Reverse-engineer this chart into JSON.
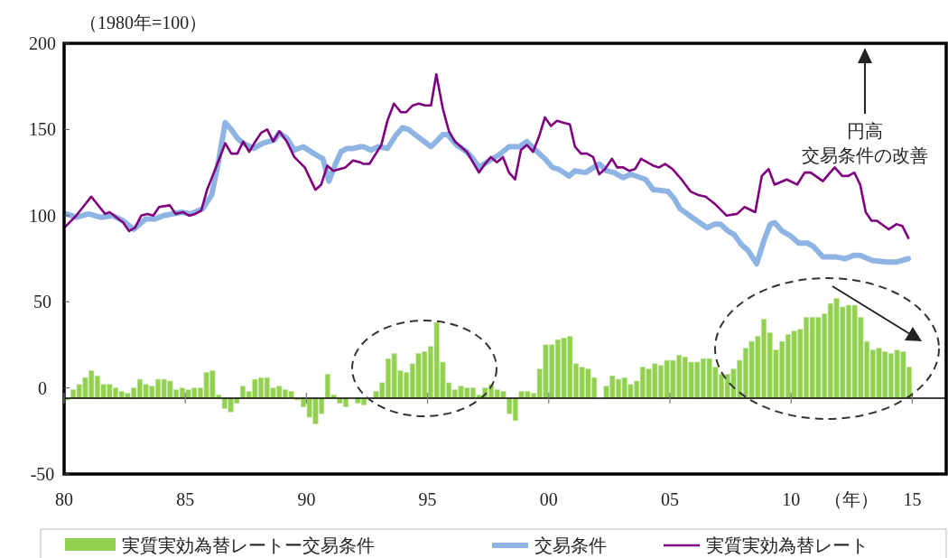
{
  "chart_data": {
    "type": "bar",
    "ylabel": "（1980年=100）",
    "xlabel": "（年）",
    "xlim": [
      1980,
      2016.4
    ],
    "xticks": [
      {
        "value": 1980,
        "label": "80"
      },
      {
        "value": 1985,
        "label": "85"
      },
      {
        "value": 1990,
        "label": "90"
      },
      {
        "value": 1995,
        "label": "95"
      },
      {
        "value": 2000,
        "label": "00"
      },
      {
        "value": 2005,
        "label": "05"
      },
      {
        "value": 2010,
        "label": "10"
      },
      {
        "value": 2015,
        "label": "15"
      }
    ],
    "ylim": [
      -50,
      200
    ],
    "yticks": [
      -50,
      0,
      50,
      100,
      150,
      200
    ],
    "legend": "bottom",
    "annotations": [
      "円高",
      "交易条件の改善"
    ],
    "ref_lines": [
      {
        "axis": "y",
        "value": -6,
        "color": "#000000"
      }
    ],
    "series": [
      {
        "name": "実質実効為替レートー交易条件",
        "color": "#92d050",
        "x": [
          1980.125,
          1980.375,
          1980.625,
          1980.875,
          1981.125,
          1981.375,
          1981.625,
          1981.875,
          1982.125,
          1982.375,
          1982.625,
          1982.875,
          1983.125,
          1983.375,
          1983.625,
          1983.875,
          1984.125,
          1984.375,
          1984.625,
          1984.875,
          1985.125,
          1985.375,
          1985.625,
          1985.875,
          1986.125,
          1986.375,
          1986.625,
          1986.875,
          1987.125,
          1987.375,
          1987.625,
          1987.875,
          1988.125,
          1988.375,
          1988.625,
          1988.875,
          1989.125,
          1989.375,
          1989.625,
          1989.875,
          1990.125,
          1990.375,
          1990.625,
          1990.875,
          1991.125,
          1991.375,
          1991.625,
          1991.875,
          1992.125,
          1992.375,
          1992.625,
          1992.875,
          1993.125,
          1993.375,
          1993.625,
          1993.875,
          1994.125,
          1994.375,
          1994.625,
          1994.875,
          1995.125,
          1995.375,
          1995.625,
          1995.875,
          1996.125,
          1996.375,
          1996.625,
          1996.875,
          1997.125,
          1997.375,
          1997.625,
          1997.875,
          1998.125,
          1998.375,
          1998.625,
          1998.875,
          1999.125,
          1999.375,
          1999.625,
          1999.875,
          2000.125,
          2000.375,
          2000.625,
          2000.875,
          2001.125,
          2001.375,
          2001.625,
          2001.875,
          2002.125,
          2002.375,
          2002.625,
          2002.875,
          2003.125,
          2003.375,
          2003.625,
          2003.875,
          2004.125,
          2004.375,
          2004.625,
          2004.875,
          2005.125,
          2005.375,
          2005.625,
          2005.875,
          2006.125,
          2006.375,
          2006.625,
          2006.875,
          2007.125,
          2007.375,
          2007.625,
          2007.875,
          2008.125,
          2008.375,
          2008.625,
          2008.875,
          2009.125,
          2009.375,
          2009.625,
          2009.875,
          2010.125,
          2010.375,
          2010.625,
          2010.875,
          2011.125,
          2011.375,
          2011.625,
          2011.875,
          2012.125,
          2012.375,
          2012.625,
          2012.875,
          2013.125,
          2013.375,
          2013.625,
          2013.875,
          2014.125,
          2014.375,
          2014.625,
          2014.875
        ],
        "base": [
          -6,
          -6,
          -6,
          -6,
          -6,
          -6,
          -6,
          -6,
          -6,
          -6,
          -6,
          -6,
          -6,
          -6,
          -6,
          -6,
          -6,
          -6,
          -6,
          -6,
          -6,
          -6,
          -6,
          -6,
          -6,
          -6,
          -6,
          -6,
          -6,
          -6,
          -6,
          -6,
          -6,
          -6,
          -6,
          -6,
          -6,
          -6,
          -6,
          -6,
          -6,
          -6,
          -6,
          -6,
          -6,
          -6,
          -6,
          null,
          -6,
          -6,
          null,
          -6,
          -6,
          -6,
          -6,
          -6,
          -6,
          -6,
          -6,
          -6,
          -6,
          -6,
          -6,
          -6,
          -6,
          -6,
          -6,
          -6,
          -6,
          -6,
          -6,
          -6,
          -6,
          -6,
          -6,
          -6,
          -6,
          -6,
          -6,
          -6,
          -6,
          -6,
          -6,
          -6,
          -6,
          -6,
          -6,
          -6,
          null,
          -6,
          -6,
          -6,
          -6,
          -6,
          -6,
          -6,
          -6,
          -6,
          -6,
          -6,
          -6,
          -6,
          -6,
          -6,
          -6,
          -6,
          -6,
          -6,
          -6,
          -6,
          -6,
          -6,
          -6,
          -6,
          -6,
          -6,
          -6,
          -6,
          -6,
          -6,
          -6,
          -6,
          -6,
          -6,
          -6,
          -6,
          -6,
          -6,
          -6,
          -6,
          -6,
          -6,
          -6,
          -6,
          -6,
          -6,
          -6,
          -6,
          -6,
          -6
        ],
        "values": [
          -1,
          5,
          8,
          12,
          16,
          13,
          8,
          8,
          6,
          4,
          3,
          6,
          11,
          8,
          7,
          11,
          11,
          10,
          5,
          6,
          5,
          6,
          6,
          15,
          16,
          2,
          -6,
          -8,
          -3,
          7,
          4,
          11,
          12,
          12,
          6,
          7,
          5,
          4,
          -1,
          -5,
          -11,
          -15,
          -9,
          14,
          2,
          -3,
          -5,
          null,
          -3,
          -4,
          null,
          4,
          9,
          23,
          26,
          16,
          15,
          20,
          26,
          27,
          30,
          44,
          21,
          9,
          5,
          7,
          6,
          6,
          2,
          6,
          8,
          5,
          4,
          -9,
          -13,
          4,
          4,
          3,
          17,
          31,
          31,
          34,
          35,
          36,
          20,
          18,
          17,
          12,
          null,
          7,
          13,
          11,
          12,
          8,
          10,
          18,
          17,
          20,
          19,
          22,
          22,
          25,
          24,
          21,
          21,
          23,
          23,
          18,
          14,
          14,
          17,
          22,
          29,
          33,
          36,
          46,
          38,
          28,
          33,
          37,
          39,
          40,
          47,
          47,
          47,
          49,
          55,
          58,
          53,
          54,
          54,
          47,
          33,
          28,
          29,
          27,
          26,
          28,
          27,
          18
        ]
      },
      {
        "type": "line",
        "name": "交易条件",
        "color": "#8db4e2",
        "x": [
          1980.08,
          1980.51,
          1981.01,
          1981.51,
          1982.0,
          1982.44,
          1982.87,
          1983.36,
          1983.74,
          1984.11,
          1984.85,
          1985.22,
          1985.72,
          1986.09,
          1986.34,
          1986.65,
          1986.9,
          1987.15,
          1987.39,
          1987.83,
          1988.2,
          1988.69,
          1988.88,
          1989.19,
          1989.5,
          1989.87,
          1990.31,
          1990.68,
          1990.93,
          1991.17,
          1991.42,
          1991.67,
          1991.92,
          1992.22,
          1992.35,
          1992.66,
          1992.97,
          1993.34,
          1993.71,
          1993.96,
          1994.21,
          1994.58,
          1995.14,
          1995.63,
          1995.82,
          1996.19,
          1996.62,
          1996.87,
          1997.12,
          1997.55,
          1997.92,
          1998.36,
          1998.79,
          1999.1,
          1999.53,
          1999.84,
          2000.15,
          2000.4,
          2000.84,
          2001.08,
          2001.52,
          2002.08,
          2002.39,
          2002.7,
          2003.07,
          2003.38,
          2004.0,
          2004.31,
          2004.43,
          2004.92,
          2005.17,
          2005.42,
          2005.91,
          2006.53,
          2006.84,
          2007.09,
          2007.4,
          2007.65,
          2007.96,
          2008.21,
          2008.58,
          2008.89,
          2009.14,
          2009.32,
          2009.63,
          2010.0,
          2010.31,
          2010.69,
          2010.93,
          2011.31,
          2011.86,
          2012.23,
          2012.61,
          2012.85,
          2013.35,
          2013.97,
          2014.34,
          2014.59,
          2014.84
        ],
        "values": [
          101,
          99,
          101,
          99,
          100,
          97,
          92,
          98,
          98,
          100,
          102,
          101,
          104,
          112,
          129,
          154,
          150,
          145,
          142,
          139,
          142,
          144,
          148,
          145,
          138,
          140,
          136,
          133,
          120,
          129,
          137,
          139,
          139,
          140,
          140,
          138,
          140,
          139,
          147,
          151,
          150,
          146,
          140,
          147,
          147,
          141,
          137,
          133,
          128,
          132,
          135,
          140,
          140,
          143,
          137,
          133,
          128,
          127,
          123,
          126,
          125,
          130,
          126,
          125,
          122,
          124,
          121,
          115,
          115,
          114,
          110,
          104,
          99,
          93,
          95,
          95,
          91,
          89,
          83,
          80,
          72,
          86,
          95,
          96,
          91,
          88,
          84,
          84,
          82,
          76,
          76,
          75,
          77,
          77,
          74,
          73,
          73,
          74,
          75
        ]
      },
      {
        "type": "line",
        "name": "実質実効為替レート",
        "color": "#7f007f",
        "x": [
          1980.01,
          1980.5,
          1981.12,
          1981.69,
          1981.88,
          1982.44,
          1982.68,
          1982.93,
          1983.18,
          1983.43,
          1983.68,
          1983.92,
          1984.36,
          1984.6,
          1984.91,
          1985.16,
          1985.41,
          1985.66,
          1985.9,
          1986.21,
          1986.65,
          1986.9,
          1987.15,
          1987.39,
          1987.64,
          1987.89,
          1988.13,
          1988.38,
          1988.63,
          1988.88,
          1989.19,
          1989.5,
          1989.93,
          1990.37,
          1990.61,
          1990.86,
          1991.11,
          1991.61,
          1991.92,
          1992.22,
          1992.35,
          1992.6,
          1993.09,
          1993.34,
          1993.61,
          1993.9,
          1994.11,
          1994.39,
          1994.64,
          1994.89,
          1995.14,
          1995.36,
          1995.63,
          1995.88,
          1996.13,
          1996.62,
          1996.87,
          1997.12,
          1997.37,
          1997.61,
          1997.86,
          1998.11,
          1998.36,
          1998.61,
          1998.85,
          1999.1,
          1999.35,
          1999.6,
          1999.84,
          2000.09,
          2000.34,
          2000.59,
          2000.87,
          2001.08,
          2001.33,
          2001.58,
          2001.83,
          2002.08,
          2002.32,
          2002.61,
          2002.82,
          2003.07,
          2003.31,
          2003.56,
          2003.81,
          2004.06,
          2004.31,
          2004.55,
          2004.8,
          2005.11,
          2005.48,
          2005.85,
          2006.16,
          2006.47,
          2006.84,
          2007.34,
          2007.77,
          2008.08,
          2008.52,
          2008.79,
          2009.07,
          2009.32,
          2009.82,
          2010.25,
          2010.56,
          2010.81,
          2011.31,
          2011.61,
          2011.8,
          2012.11,
          2012.36,
          2012.61,
          2012.85,
          2013.08,
          2013.32,
          2013.54,
          2014.03,
          2014.34,
          2014.59,
          2014.84
        ],
        "values": [
          93,
          100,
          111,
          101,
          102,
          96,
          91,
          93,
          100,
          101,
          100,
          105,
          106,
          101,
          102,
          100,
          101,
          103,
          115,
          126,
          142,
          136,
          136,
          143,
          137,
          143,
          148,
          150,
          143,
          149,
          143,
          134,
          128,
          115,
          118,
          129,
          126,
          128,
          132,
          131,
          130,
          130,
          141,
          155,
          165,
          160,
          160,
          164,
          165,
          164,
          164,
          182,
          162,
          149,
          143,
          137,
          131,
          125,
          130,
          134,
          131,
          134,
          125,
          121,
          138,
          141,
          137,
          146,
          157,
          152,
          155,
          154,
          153,
          140,
          136,
          136,
          134,
          124,
          127,
          133,
          128,
          128,
          126,
          127,
          133,
          131,
          129,
          128,
          130,
          127,
          121,
          114,
          112,
          111,
          107,
          100,
          101,
          105,
          102,
          123,
          127,
          118,
          121,
          118,
          125,
          125,
          120,
          125,
          128,
          123,
          123,
          125,
          118,
          102,
          97,
          97,
          92,
          95,
          94,
          87
        ]
      }
    ]
  }
}
